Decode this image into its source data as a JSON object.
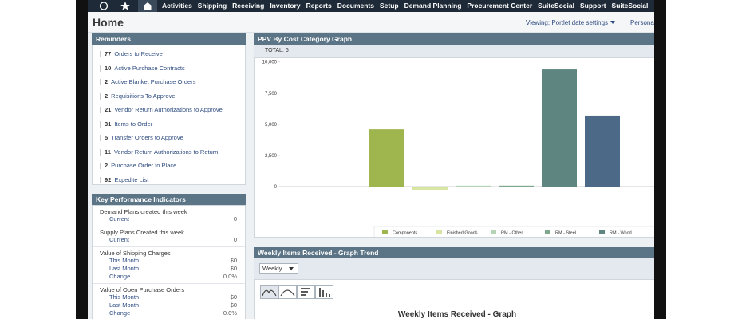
{
  "nav": {
    "items": [
      "Activities",
      "Shipping",
      "Receiving",
      "Inventory",
      "Reports",
      "Documents",
      "Setup",
      "Demand Planning",
      "Procurement Center",
      "SuiteSocial",
      "Support",
      "SuiteSocial"
    ]
  },
  "header": {
    "title": "Home",
    "viewing": "Viewing: Portlet date settings",
    "persona": "Persona"
  },
  "reminders": {
    "title": "Reminders",
    "items": [
      {
        "count": 77,
        "label": "Orders to Receive"
      },
      {
        "count": 10,
        "label": "Active Purchase Contracts"
      },
      {
        "count": 2,
        "label": "Active Blanket Purchase Orders"
      },
      {
        "count": 2,
        "label": "Requisitions To Approve"
      },
      {
        "count": 21,
        "label": "Vendor Return Authorizations to Approve"
      },
      {
        "count": 31,
        "label": "Items to Order"
      },
      {
        "count": 5,
        "label": "Transfer Orders to Approve"
      },
      {
        "count": 11,
        "label": "Vendor Return Authorizations to Return"
      },
      {
        "count": 2,
        "label": "Purchase Order to Place"
      },
      {
        "count": 92,
        "label": "Expedite List"
      }
    ]
  },
  "kpi": {
    "title": "Key Performance Indicators",
    "groups": [
      {
        "name": "Demand Plans created this week",
        "rows": [
          {
            "label": "Current",
            "value": "0"
          }
        ]
      },
      {
        "name": "Supply Plans Created this week",
        "rows": [
          {
            "label": "Current",
            "value": "0"
          }
        ]
      },
      {
        "name": "Value of Shipping Charges",
        "rows": [
          {
            "label": "This Month",
            "value": "$0"
          },
          {
            "label": "Last Month",
            "value": "$0"
          },
          {
            "label": "Change",
            "value": "0.0%"
          }
        ]
      },
      {
        "name": "Value of Open Purchase Orders",
        "rows": [
          {
            "label": "This Month",
            "value": "$0"
          },
          {
            "label": "Last Month",
            "value": "$0"
          },
          {
            "label": "Change",
            "value": "0.0%"
          }
        ]
      }
    ]
  },
  "chart_data": {
    "type": "bar",
    "title": "PPV By Cost Category Graph",
    "total_label": "TOTAL:",
    "total": 6,
    "categories": [
      "Components",
      "Finished Goods",
      "RM - Other",
      "RM - Steel",
      "RM - Wood",
      null
    ],
    "values": [
      4600,
      -250,
      80,
      80,
      9400,
      5700
    ],
    "colors": [
      "#9fb54d",
      "#d6e6a0",
      "#b5d4b5",
      "#7fa78e",
      "#5f8580",
      "#4c6a87"
    ],
    "ylim": [
      -700,
      10300
    ],
    "yticks": [
      {
        "value": 0,
        "label": "0"
      },
      {
        "value": 2500,
        "label": "2,500"
      },
      {
        "value": 5000,
        "label": "5,000"
      },
      {
        "value": 7500,
        "label": "7,500"
      },
      {
        "value": 10000,
        "label": "10,000"
      }
    ],
    "grid": false
  },
  "weekly": {
    "title": "Weekly Items Received - Graph Trend",
    "select": "Weekly",
    "graph_title": "Weekly Items Received - Graph"
  }
}
